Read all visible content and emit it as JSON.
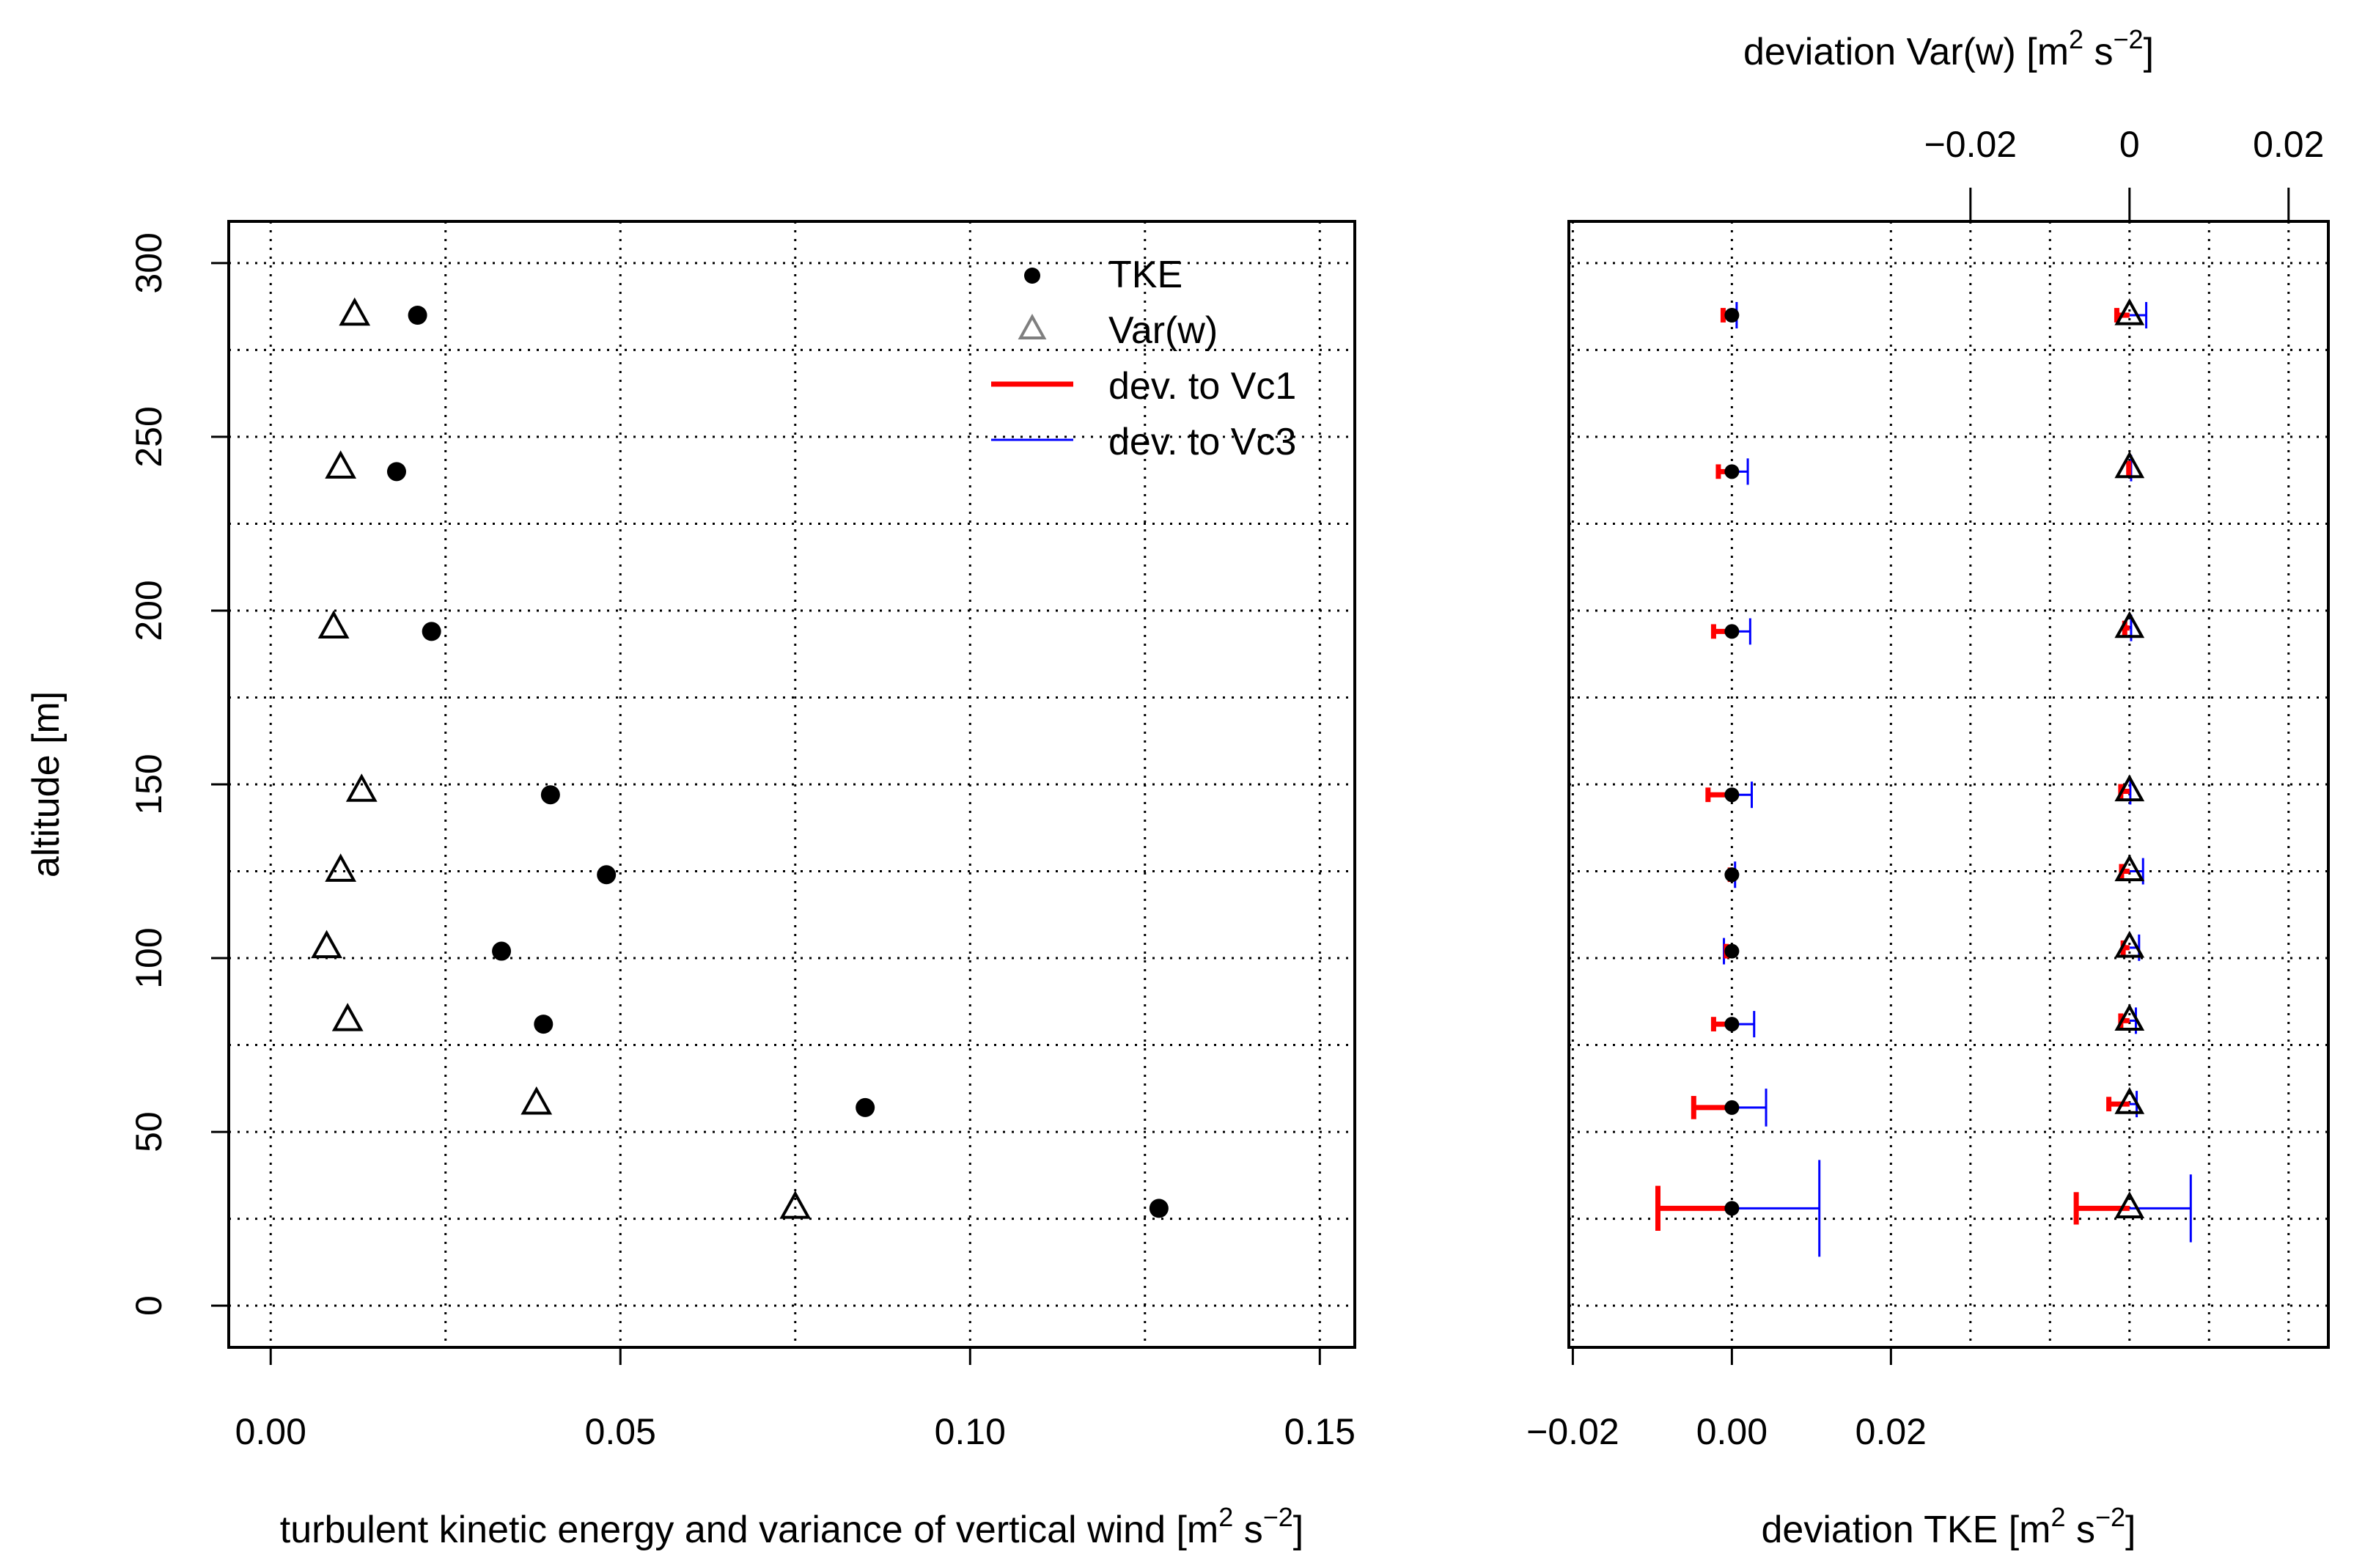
{
  "chart_data": [
    {
      "type": "scatter",
      "xlabel": "turbulent kinetic energy and variance of vertical wind",
      "xlabel_unit": {
        "base": "[m",
        "sup1": "2",
        "mid": " s",
        "sup2": "−2",
        "end": "]"
      },
      "ylabel": "altitude [m]",
      "xlim": [
        -0.006,
        0.155
      ],
      "ylim": [
        -12,
        312
      ],
      "xticks": [
        0.0,
        0.05,
        0.1,
        0.15
      ],
      "xtick_labels": [
        "0.00",
        "0.05",
        "0.10",
        "0.15"
      ],
      "yticks": [
        0,
        50,
        100,
        150,
        200,
        250,
        300
      ],
      "ytick_labels": [
        "0",
        "50",
        "100",
        "150",
        "200",
        "250",
        "300"
      ],
      "grid": true,
      "legend_position": "top-right",
      "legend": [
        {
          "label": "TKE",
          "marker": "filled-circle",
          "color": "#000000"
        },
        {
          "label": "Var(w)",
          "marker": "open-triangle",
          "color": "#7f7f7f"
        },
        {
          "label": "dev. to Vc1",
          "marker": "line",
          "color": "#ff0000"
        },
        {
          "label": "dev. to Vc3",
          "marker": "line",
          "color": "#0000ff"
        }
      ],
      "series": [
        {
          "name": "TKE",
          "points": [
            {
              "x": 0.127,
              "y": 28
            },
            {
              "x": 0.085,
              "y": 57
            },
            {
              "x": 0.039,
              "y": 81
            },
            {
              "x": 0.033,
              "y": 102
            },
            {
              "x": 0.048,
              "y": 124
            },
            {
              "x": 0.04,
              "y": 147
            },
            {
              "x": 0.023,
              "y": 194
            },
            {
              "x": 0.018,
              "y": 240
            },
            {
              "x": 0.021,
              "y": 285
            }
          ]
        },
        {
          "name": "Var(w)",
          "points": [
            {
              "x": 0.075,
              "y": 28
            },
            {
              "x": 0.038,
              "y": 58
            },
            {
              "x": 0.011,
              "y": 82
            },
            {
              "x": 0.008,
              "y": 103
            },
            {
              "x": 0.01,
              "y": 125
            },
            {
              "x": 0.013,
              "y": 148
            },
            {
              "x": 0.009,
              "y": 195
            },
            {
              "x": 0.01,
              "y": 241
            },
            {
              "x": 0.012,
              "y": 285
            }
          ]
        }
      ]
    },
    {
      "type": "scatter",
      "xlabel_bottom": "deviation TKE",
      "xlabel_bottom_unit": {
        "base": "[m",
        "sup1": "2",
        "mid": " s",
        "sup2": "−2",
        "end": "]"
      },
      "xlabel_top": "deviation Var(w)",
      "xlabel_top_unit": {
        "base": "[m",
        "sup1": "2",
        "mid": " s",
        "sup2": "−2",
        "end": "]"
      },
      "bottom_xlim": [
        -0.0205,
        0.075
      ],
      "bottom_xticks": [
        -0.02,
        0.0,
        0.02
      ],
      "bottom_xtick_labels": [
        "−0.02",
        "0.00",
        "0.02"
      ],
      "top_xlim": [
        -0.0705,
        0.025
      ],
      "top_xticks": [
        -0.02,
        0.0,
        0.02
      ],
      "top_xtick_labels": [
        "−0.02",
        "0",
        "0.02"
      ],
      "ylim": [
        -12,
        312
      ],
      "grid": true,
      "tke_deviation": {
        "points": [
          {
            "y": 28,
            "x": 0.0,
            "vc1": -0.0093,
            "vc3": 0.011
          },
          {
            "y": 57,
            "x": 0.0,
            "vc1": -0.0048,
            "vc3": 0.0043
          },
          {
            "y": 81,
            "x": 0.0,
            "vc1": -0.0023,
            "vc3": 0.0028
          },
          {
            "y": 102,
            "x": 0.0,
            "vc1": -0.0007,
            "vc3": -0.001
          },
          {
            "y": 124,
            "x": 0.0,
            "vc1": -0.0002,
            "vc3": 0.0004
          },
          {
            "y": 147,
            "x": 0.0,
            "vc1": -0.003,
            "vc3": 0.0025
          },
          {
            "y": 194,
            "x": 0.0,
            "vc1": -0.0023,
            "vc3": 0.0023
          },
          {
            "y": 240,
            "x": 0.0,
            "vc1": -0.0017,
            "vc3": 0.002
          },
          {
            "y": 285,
            "x": 0.0,
            "vc1": -0.0011,
            "vc3": 0.0006
          }
        ]
      },
      "varw_deviation": {
        "points": [
          {
            "y": 28,
            "x": 0.0,
            "vc1": -0.0067,
            "vc3": 0.0077
          },
          {
            "y": 58,
            "x": 0.0,
            "vc1": -0.0026,
            "vc3": 0.0009
          },
          {
            "y": 82,
            "x": 0.0,
            "vc1": -0.0011,
            "vc3": 0.0008
          },
          {
            "y": 103,
            "x": 0.0,
            "vc1": -0.0008,
            "vc3": 0.0012
          },
          {
            "y": 125,
            "x": 0.0,
            "vc1": -0.001,
            "vc3": 0.0017
          },
          {
            "y": 148,
            "x": 0.0,
            "vc1": -0.0011,
            "vc3": 0.0001
          },
          {
            "y": 195,
            "x": 0.0,
            "vc1": -0.0006,
            "vc3": 0.0002
          },
          {
            "y": 241,
            "x": 0.0,
            "vc1": -0.0001,
            "vc3": 0.0002
          },
          {
            "y": 285,
            "x": 0.0,
            "vc1": -0.0016,
            "vc3": 0.0021
          }
        ]
      }
    }
  ]
}
